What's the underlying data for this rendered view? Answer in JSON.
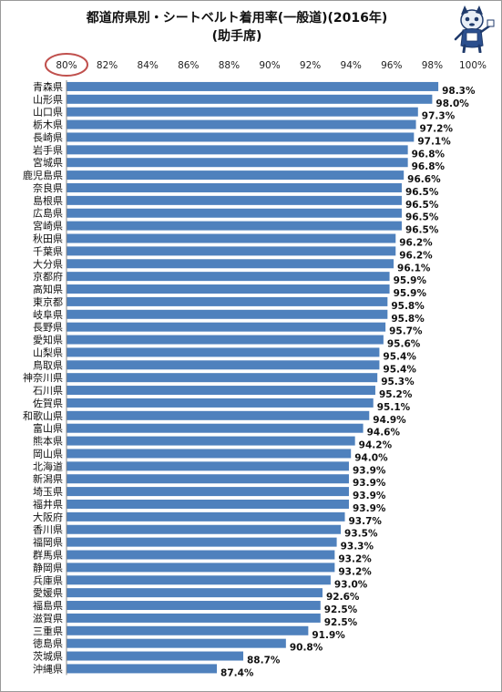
{
  "chart_data": {
    "type": "bar",
    "orientation": "horizontal",
    "title": "都道府県別・シートベルト着用率(一般道)(2016年)",
    "subtitle": "(助手席)",
    "xlim": [
      80,
      100
    ],
    "xticks": [
      "80%",
      "82%",
      "84%",
      "86%",
      "88%",
      "90%",
      "92%",
      "94%",
      "96%",
      "98%",
      "100%"
    ],
    "highlighted_tick": "80%",
    "bar_color": "#4f81bd",
    "highlight_color": "#c0504d",
    "grid": false,
    "categories": [
      "青森県",
      "山形県",
      "山口県",
      "栃木県",
      "長崎県",
      "岩手県",
      "宮城県",
      "鹿児島県",
      "奈良県",
      "島根県",
      "広島県",
      "宮崎県",
      "秋田県",
      "千葉県",
      "大分県",
      "京都府",
      "高知県",
      "東京都",
      "岐阜県",
      "長野県",
      "愛知県",
      "山梨県",
      "鳥取県",
      "神奈川県",
      "石川県",
      "佐賀県",
      "和歌山県",
      "富山県",
      "熊本県",
      "岡山県",
      "北海道",
      "新潟県",
      "埼玉県",
      "福井県",
      "大阪府",
      "香川県",
      "福岡県",
      "群馬県",
      "静岡県",
      "兵庫県",
      "愛媛県",
      "福島県",
      "滋賀県",
      "三重県",
      "徳島県",
      "茨城県",
      "沖縄県"
    ],
    "values": [
      98.3,
      98.0,
      97.3,
      97.2,
      97.1,
      96.8,
      96.8,
      96.6,
      96.5,
      96.5,
      96.5,
      96.5,
      96.2,
      96.2,
      96.1,
      95.9,
      95.9,
      95.8,
      95.8,
      95.7,
      95.6,
      95.4,
      95.4,
      95.3,
      95.2,
      95.1,
      94.9,
      94.6,
      94.2,
      94.0,
      93.9,
      93.9,
      93.9,
      93.9,
      93.7,
      93.5,
      93.3,
      93.2,
      93.2,
      93.0,
      92.6,
      92.5,
      92.5,
      91.9,
      90.8,
      88.7,
      87.4
    ],
    "value_labels": [
      "98.3%",
      "98.0%",
      "97.3%",
      "97.2%",
      "97.1%",
      "96.8%",
      "96.8%",
      "96.6%",
      "96.5%",
      "96.5%",
      "96.5%",
      "96.5%",
      "96.2%",
      "96.2%",
      "96.1%",
      "95.9%",
      "95.9%",
      "95.8%",
      "95.8%",
      "95.7%",
      "95.6%",
      "95.4%",
      "95.4%",
      "95.3%",
      "95.2%",
      "95.1%",
      "94.9%",
      "94.6%",
      "94.2%",
      "94.0%",
      "93.9%",
      "93.9%",
      "93.9%",
      "93.9%",
      "93.7%",
      "93.5%",
      "93.3%",
      "93.2%",
      "93.2%",
      "93.0%",
      "92.6%",
      "92.5%",
      "92.5%",
      "91.9%",
      "90.8%",
      "88.7%",
      "87.4%"
    ]
  }
}
